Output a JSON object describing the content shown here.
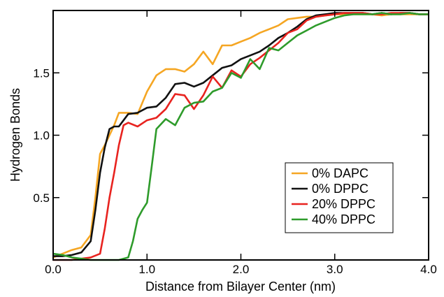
{
  "chart_data": {
    "type": "line",
    "title": "",
    "xlabel": "Distance from Bilayer Center (nm)",
    "ylabel": "Hydrogen Bonds",
    "xlim": [
      0,
      4
    ],
    "ylim": [
      0,
      2.0
    ],
    "xticks": [
      {
        "value": 0,
        "label": "0.0"
      },
      {
        "value": 1,
        "label": "1.0"
      },
      {
        "value": 2,
        "label": "2.0"
      },
      {
        "value": 3,
        "label": "3.0"
      },
      {
        "value": 4,
        "label": "4.0"
      }
    ],
    "yticks": [
      {
        "value": 0.5,
        "label": "0.5"
      },
      {
        "value": 1.0,
        "label": "1.0"
      },
      {
        "value": 1.5,
        "label": "1.5"
      }
    ],
    "grid": false,
    "legend_position": "bottom-right",
    "series": [
      {
        "name": "0% DAPC",
        "color": "#f5a623",
        "x": [
          0.0,
          0.1,
          0.2,
          0.3,
          0.4,
          0.45,
          0.5,
          0.55,
          0.6,
          0.65,
          0.7,
          0.8,
          0.9,
          1.0,
          1.1,
          1.2,
          1.3,
          1.4,
          1.5,
          1.6,
          1.7,
          1.8,
          1.9,
          2.0,
          2.1,
          2.2,
          2.3,
          2.4,
          2.5,
          2.6,
          2.7,
          2.8,
          2.9,
          3.0,
          3.1,
          3.2,
          3.3,
          3.4,
          3.5,
          3.6,
          3.7,
          3.8,
          3.9,
          4.0
        ],
        "y": [
          0.02,
          0.05,
          0.08,
          0.1,
          0.2,
          0.5,
          0.85,
          0.92,
          1.0,
          1.08,
          1.18,
          1.18,
          1.17,
          1.35,
          1.48,
          1.53,
          1.53,
          1.51,
          1.57,
          1.67,
          1.57,
          1.72,
          1.72,
          1.75,
          1.78,
          1.82,
          1.85,
          1.88,
          1.93,
          1.94,
          1.95,
          1.95,
          1.96,
          1.97,
          1.97,
          1.97,
          1.97,
          1.97,
          1.96,
          1.97,
          1.97,
          1.97,
          1.97,
          1.97
        ]
      },
      {
        "name": "0% DPPC",
        "color": "#111111",
        "x": [
          0.0,
          0.1,
          0.2,
          0.3,
          0.4,
          0.45,
          0.5,
          0.55,
          0.6,
          0.65,
          0.7,
          0.8,
          0.9,
          1.0,
          1.1,
          1.2,
          1.3,
          1.4,
          1.5,
          1.6,
          1.7,
          1.8,
          1.9,
          2.0,
          2.1,
          2.2,
          2.3,
          2.4,
          2.5,
          2.6,
          2.7,
          2.8,
          2.9,
          3.0,
          3.1,
          3.2,
          3.3,
          3.4,
          3.5,
          3.6,
          3.7,
          3.8,
          3.9,
          4.0
        ],
        "y": [
          0.03,
          0.03,
          0.04,
          0.06,
          0.15,
          0.4,
          0.7,
          0.9,
          1.05,
          1.07,
          1.07,
          1.17,
          1.18,
          1.22,
          1.23,
          1.3,
          1.41,
          1.42,
          1.39,
          1.42,
          1.48,
          1.54,
          1.56,
          1.61,
          1.64,
          1.67,
          1.72,
          1.78,
          1.82,
          1.87,
          1.93,
          1.96,
          1.97,
          1.98,
          1.98,
          1.98,
          1.98,
          1.97,
          1.98,
          1.97,
          1.98,
          1.98,
          1.97,
          1.97
        ]
      },
      {
        "name": "20% DPPC",
        "color": "#e8231f",
        "x": [
          0.0,
          0.1,
          0.2,
          0.3,
          0.4,
          0.5,
          0.55,
          0.6,
          0.65,
          0.7,
          0.75,
          0.8,
          0.9,
          1.0,
          1.1,
          1.2,
          1.3,
          1.4,
          1.5,
          1.6,
          1.7,
          1.8,
          1.9,
          2.0,
          2.1,
          2.2,
          2.3,
          2.4,
          2.5,
          2.6,
          2.7,
          2.8,
          2.9,
          3.0,
          3.1,
          3.2,
          3.3,
          3.4,
          3.5,
          3.6,
          3.7,
          3.8,
          3.9,
          4.0
        ],
        "y": [
          0.0,
          0.0,
          0.0,
          0.01,
          0.02,
          0.05,
          0.25,
          0.5,
          0.7,
          0.92,
          1.08,
          1.1,
          1.07,
          1.12,
          1.14,
          1.21,
          1.33,
          1.32,
          1.21,
          1.32,
          1.47,
          1.38,
          1.52,
          1.47,
          1.57,
          1.62,
          1.68,
          1.74,
          1.82,
          1.85,
          1.92,
          1.95,
          1.96,
          1.97,
          1.98,
          1.98,
          1.98,
          1.97,
          1.97,
          1.98,
          1.98,
          1.98,
          1.97,
          1.97
        ]
      },
      {
        "name": "40% DPPC",
        "color": "#2e9b2b",
        "x": [
          0.0,
          0.1,
          0.2,
          0.3,
          0.4,
          0.5,
          0.6,
          0.7,
          0.8,
          0.85,
          0.9,
          0.95,
          1.0,
          1.05,
          1.1,
          1.2,
          1.3,
          1.4,
          1.5,
          1.6,
          1.7,
          1.8,
          1.9,
          2.0,
          2.1,
          2.2,
          2.3,
          2.4,
          2.5,
          2.6,
          2.7,
          2.8,
          2.9,
          3.0,
          3.1,
          3.2,
          3.3,
          3.4,
          3.5,
          3.6,
          3.7,
          3.8,
          3.9,
          4.0
        ],
        "y": [
          0.05,
          0.04,
          0.02,
          0.01,
          0.0,
          0.0,
          0.0,
          0.0,
          0.02,
          0.15,
          0.33,
          0.4,
          0.46,
          0.75,
          1.05,
          1.13,
          1.08,
          1.22,
          1.26,
          1.27,
          1.35,
          1.38,
          1.5,
          1.46,
          1.61,
          1.53,
          1.7,
          1.68,
          1.74,
          1.8,
          1.84,
          1.88,
          1.91,
          1.94,
          1.96,
          1.97,
          1.97,
          1.97,
          1.98,
          1.97,
          1.97,
          1.98,
          1.97,
          1.97
        ]
      }
    ]
  }
}
